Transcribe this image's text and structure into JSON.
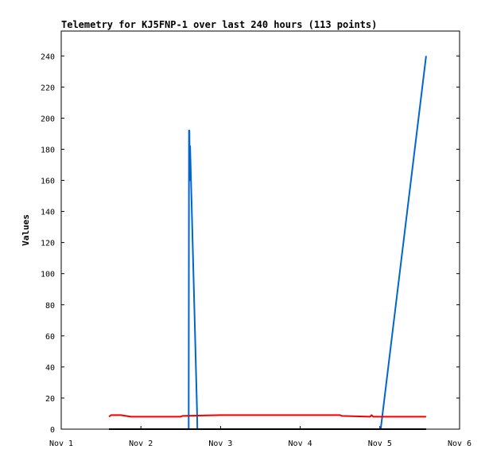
{
  "chart_data": {
    "type": "line",
    "title": "Telemetry for KJ5FNP-1 over last 240 hours (113 points)",
    "xlabel": "",
    "ylabel": "Values",
    "x_ticks": [
      "Nov 1",
      "Nov 2",
      "Nov 3",
      "Nov 4",
      "Nov 5",
      "Nov 6"
    ],
    "y_ticks": [
      0,
      20,
      40,
      60,
      80,
      100,
      120,
      140,
      160,
      180,
      200,
      220,
      240
    ],
    "xlim": [
      "Nov 1 00:00",
      "Nov 6 00:00"
    ],
    "ylim": [
      0,
      256
    ],
    "grid": false,
    "series": [
      {
        "color": "#0066cc",
        "points": [
          [
            "Nov 2 14:24",
            0
          ],
          [
            "Nov 2 14:30",
            192
          ],
          [
            "Nov 2 14:36",
            192
          ],
          [
            "Nov 2 14:42",
            160
          ],
          [
            "Nov 2 14:50",
            182
          ],
          [
            "Nov 2 16:55",
            12
          ],
          [
            "Nov 2 17:00",
            0
          ],
          [
            "Nov 5 00:14",
            0
          ],
          [
            "Nov 5 13:55",
            240
          ]
        ]
      },
      {
        "color": "#ee0000",
        "points": [
          [
            "Nov 1 14:24",
            8
          ],
          [
            "Nov 1 15:00",
            9
          ],
          [
            "Nov 1 18:00",
            9
          ],
          [
            "Nov 1 21:00",
            8
          ],
          [
            "Nov 2 12:00",
            8
          ],
          [
            "Nov 2 12:30",
            8.5
          ],
          [
            "Nov 3 00:00",
            9
          ],
          [
            "Nov 4 12:00",
            9
          ],
          [
            "Nov 4 12:30",
            8.5
          ],
          [
            "Nov 4 21:00",
            8
          ],
          [
            "Nov 4 21:30",
            9
          ],
          [
            "Nov 4 22:00",
            8
          ],
          [
            "Nov 5 13:55",
            8
          ]
        ]
      },
      {
        "color": "#000000",
        "points": [
          [
            "Nov 1 14:24",
            0
          ],
          [
            "Nov 5 13:55",
            0
          ]
        ]
      }
    ]
  }
}
